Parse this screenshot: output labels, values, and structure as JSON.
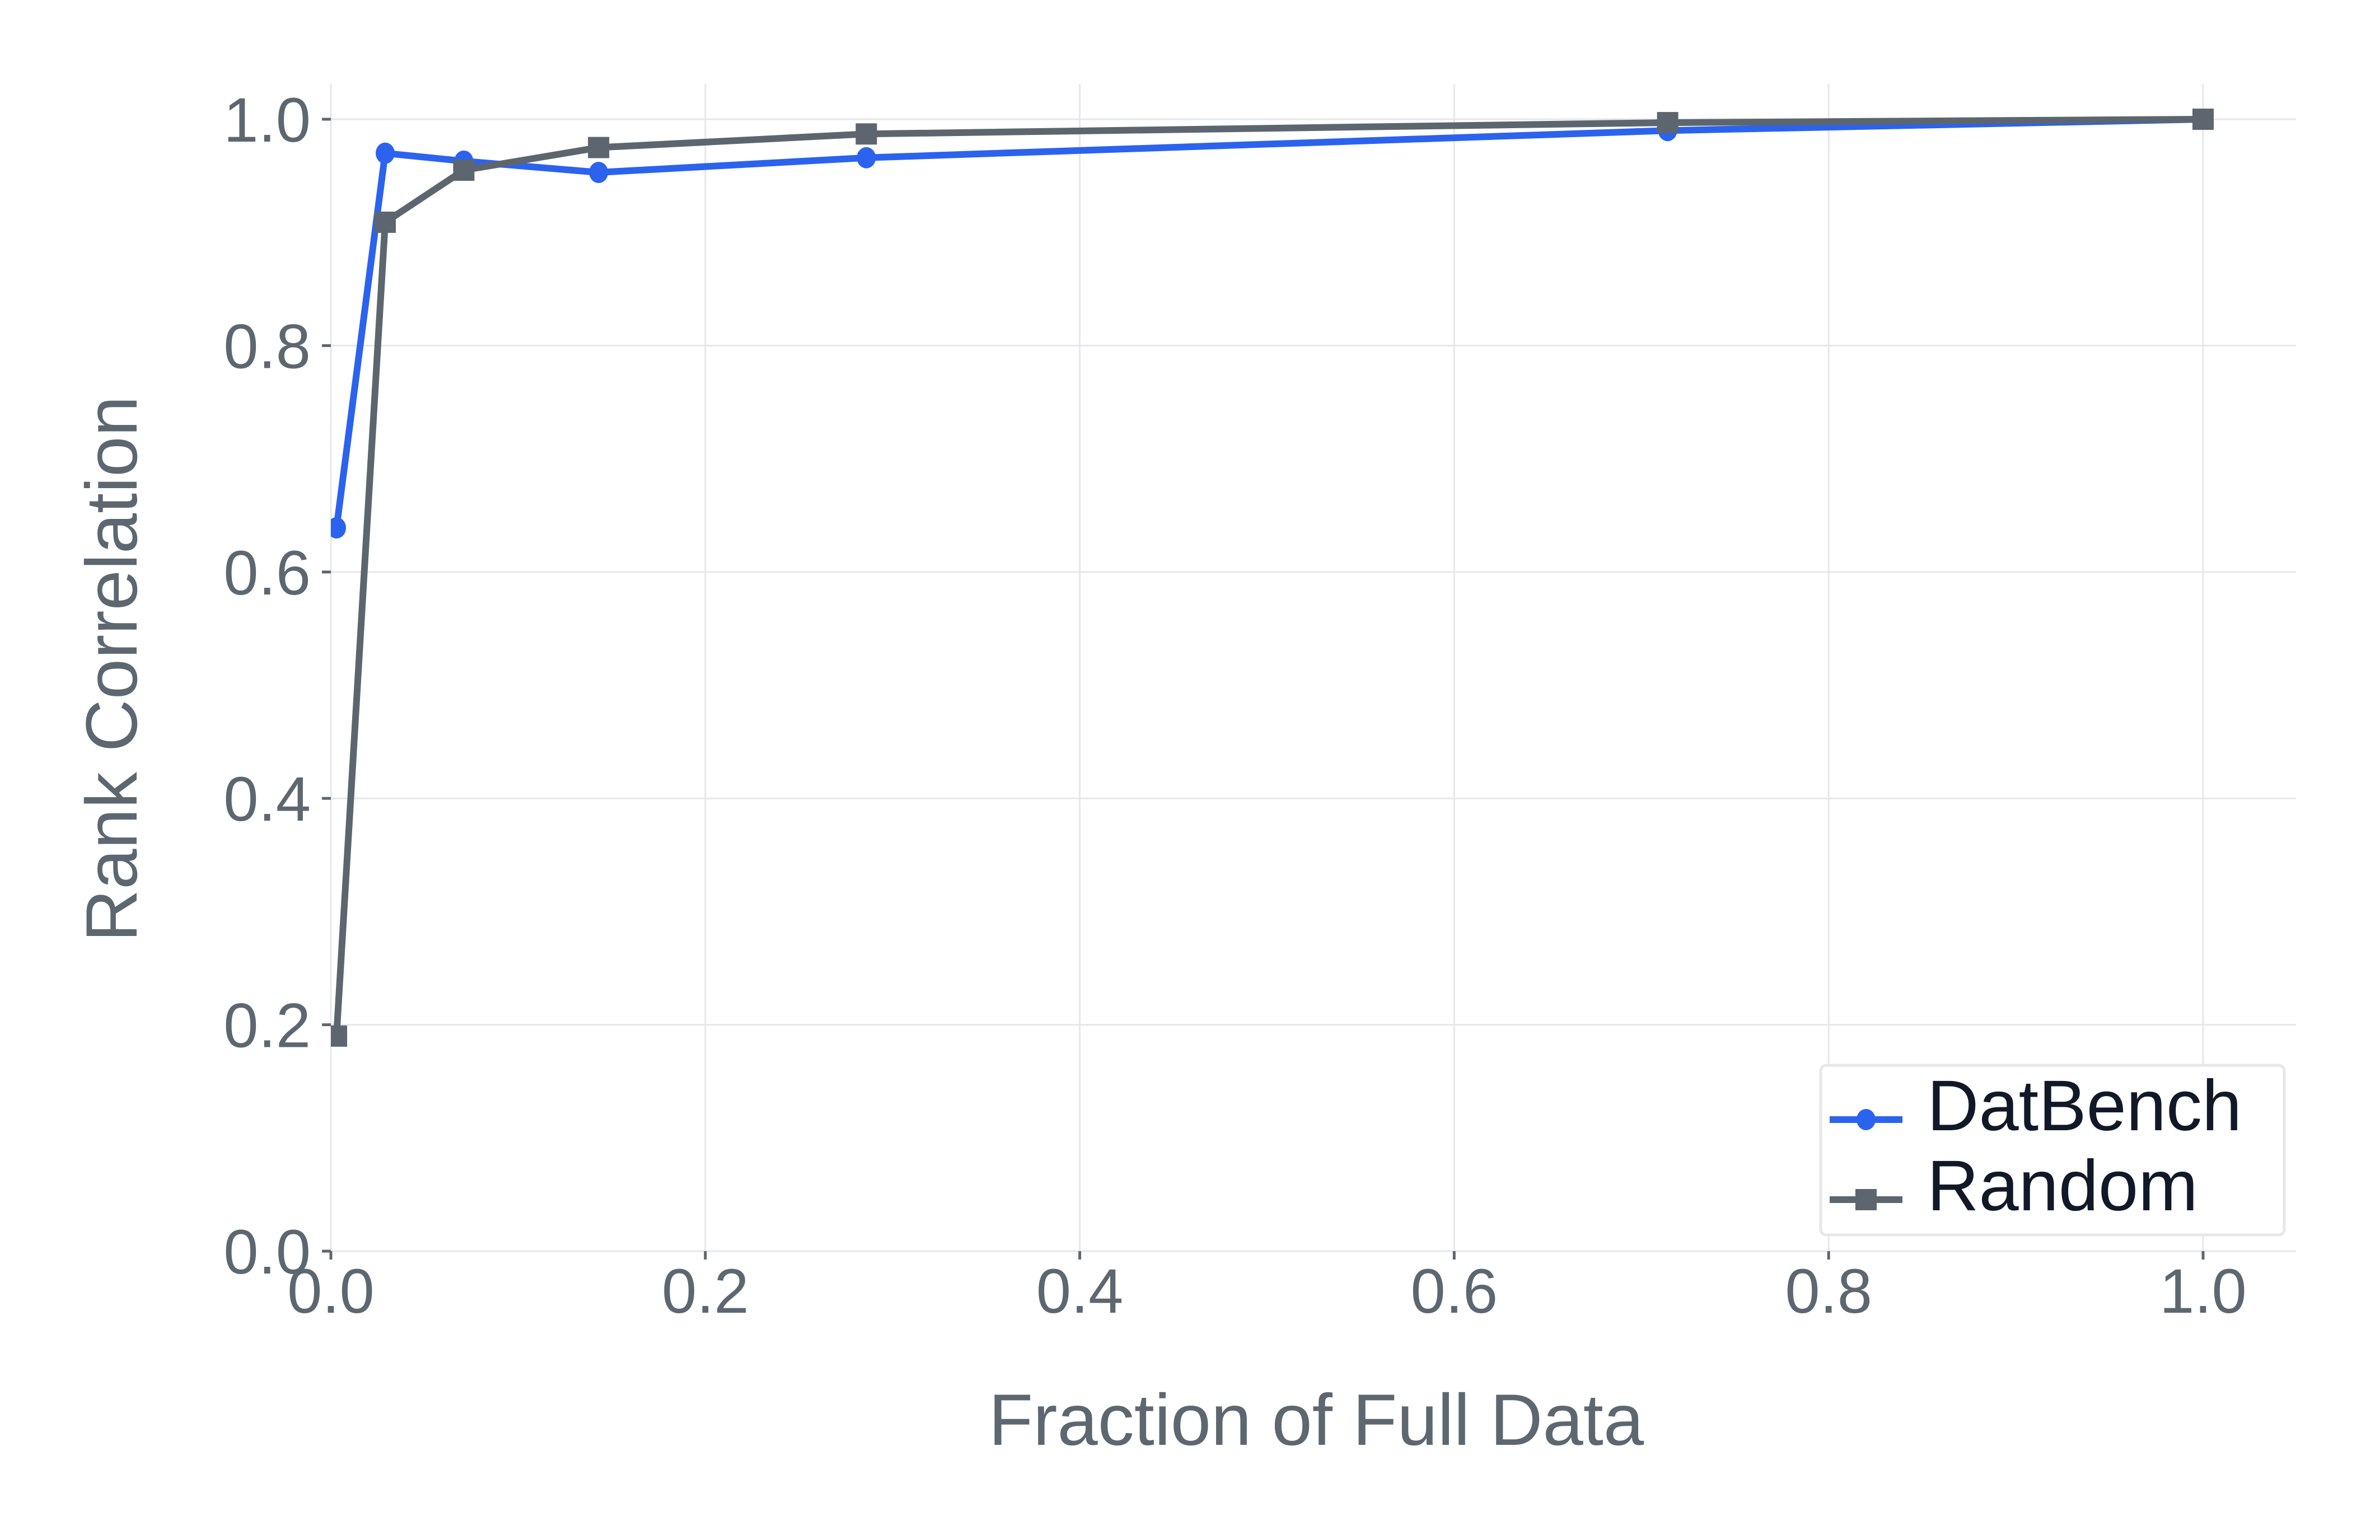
{
  "chart_data": {
    "type": "line",
    "title": "",
    "xlabel": "Fraction of Full Data",
    "ylabel": "Rank Correlation",
    "xlim": [
      0.0,
      1.05
    ],
    "ylim": [
      0.0,
      1.03
    ],
    "grid": true,
    "legend_position": "lower right",
    "x_ticks": [
      "0.0",
      "0.2",
      "0.4",
      "0.6",
      "0.8",
      "1.0"
    ],
    "y_ticks": [
      "0.0",
      "0.2",
      "0.4",
      "0.6",
      "0.8",
      "1.0"
    ],
    "x": [
      0.003,
      0.029,
      0.071,
      0.143,
      0.286,
      0.714,
      1.0
    ],
    "series": [
      {
        "name": "DatBench",
        "color": "#2b63ee",
        "marker": "circle",
        "values": [
          0.639,
          0.97,
          0.963,
          0.953,
          0.966,
          0.99,
          1.0
        ]
      },
      {
        "name": "Random",
        "color": "#5d666e",
        "marker": "square",
        "values": [
          0.19,
          0.909,
          0.955,
          0.975,
          0.987,
          0.997,
          1.0
        ]
      }
    ]
  },
  "legend": {
    "items": [
      {
        "label": "DatBench"
      },
      {
        "label": "Random"
      }
    ]
  },
  "axes": {
    "x_title": "Fraction of Full Data",
    "y_title": "Rank Correlation"
  }
}
